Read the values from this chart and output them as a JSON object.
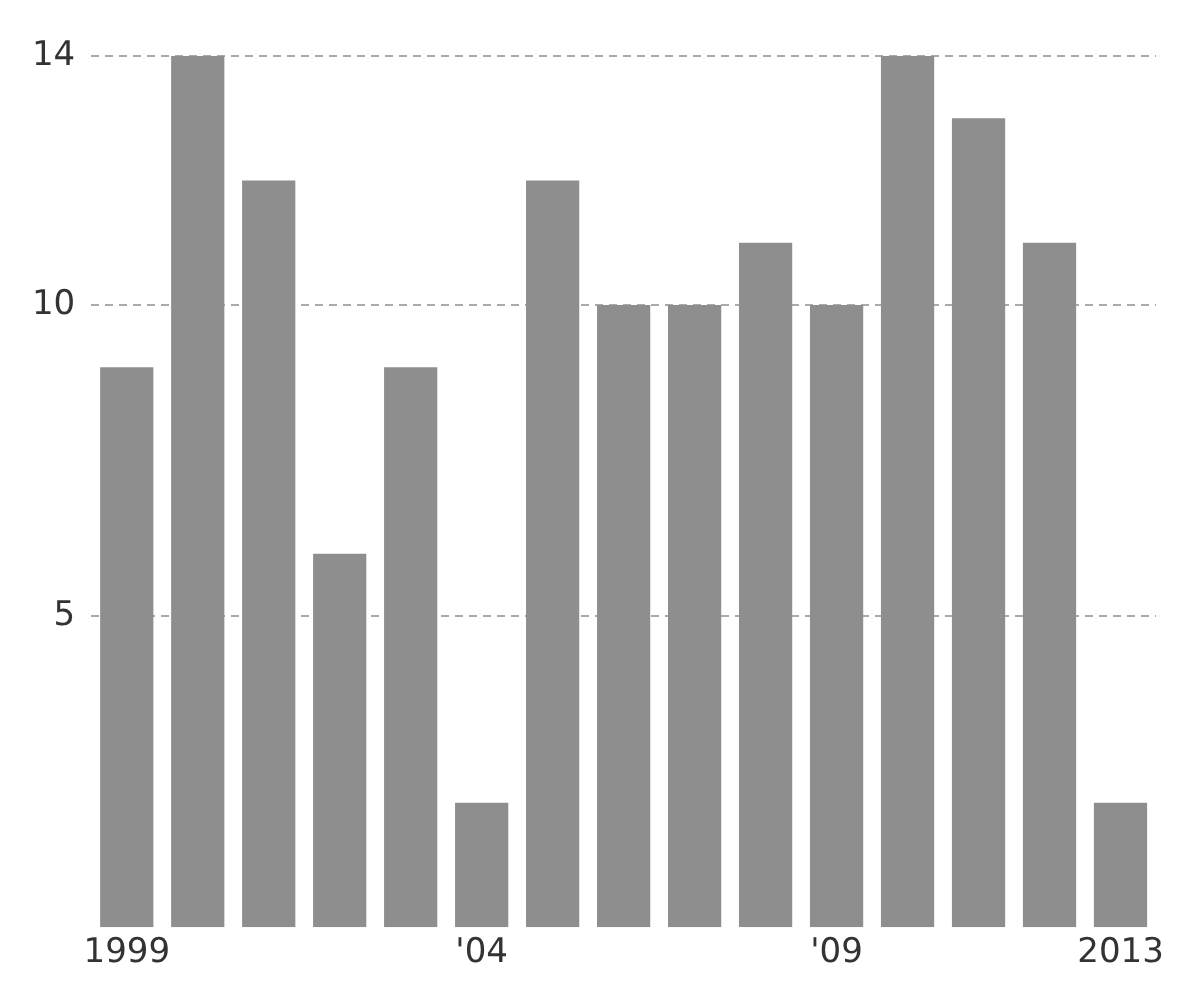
{
  "chart_data": {
    "type": "bar",
    "categories": [
      "1999",
      null,
      null,
      null,
      null,
      "'04",
      null,
      null,
      null,
      null,
      "'09",
      null,
      null,
      null,
      "2013"
    ],
    "values": [
      9,
      14,
      12,
      6,
      9,
      2,
      12,
      10,
      10,
      11,
      10,
      14,
      13,
      11,
      2
    ],
    "color": "#8e8e8e",
    "ylim": [
      0,
      14
    ],
    "yticks": [
      5,
      10,
      14
    ],
    "grid": "y"
  }
}
